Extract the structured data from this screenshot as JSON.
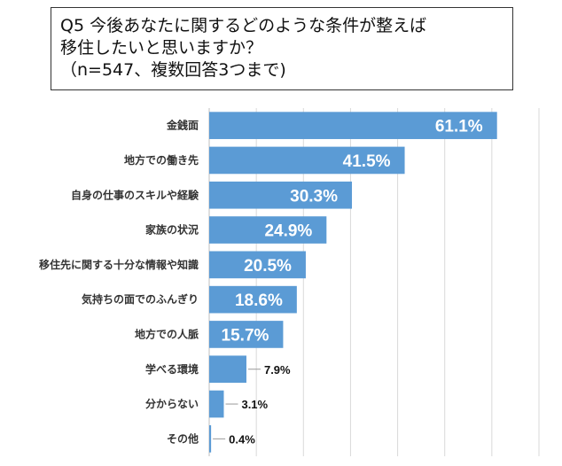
{
  "title": {
    "lines": [
      "Q5 今後あなたに関するどのような条件が整えば",
      "移住したいと思いますか？",
      "（n=547、複数回答3つまで)"
    ]
  },
  "chart_data": {
    "type": "bar",
    "orientation": "horizontal",
    "categories": [
      "金銭面",
      "地方での働き先",
      "自身の仕事のスキルや経験",
      "家族の状況",
      "移住先に関する十分な情報や知識",
      "気持ちの面でのふんぎり",
      "地方での人脈",
      "学べる環境",
      "分からない",
      "その他"
    ],
    "values": [
      61.1,
      41.5,
      30.3,
      24.9,
      20.5,
      18.6,
      15.7,
      7.9,
      3.1,
      0.4
    ],
    "value_labels": [
      "61.1%",
      "41.5%",
      "30.3%",
      "24.9%",
      "20.5%",
      "18.6%",
      "15.7%",
      "7.9%",
      "3.1%",
      "0.4%"
    ],
    "unit": "%",
    "xlim": [
      0,
      70
    ],
    "grid": true,
    "bar_color": "#5b9bd5"
  }
}
